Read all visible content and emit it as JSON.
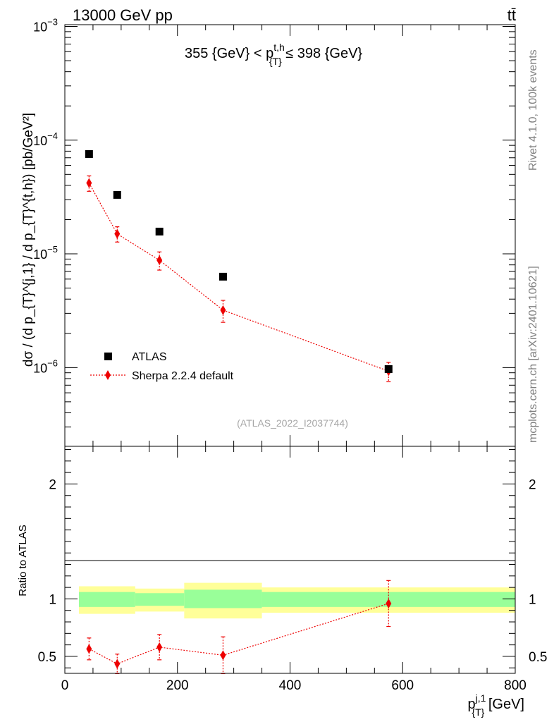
{
  "header": {
    "energy_label": "13000 GeV pp",
    "process_label": "tt̄"
  },
  "side_labels": {
    "rivet": "Rivet 4.1.0,  100k events",
    "source": "mcplots.cern.ch [arXiv:2401.10621]"
  },
  "colors": {
    "data": "#000000",
    "mc": "#ee0000",
    "band_inner": "#99ff99",
    "band_outer": "#ffff99"
  },
  "chart_data": [
    {
      "type": "scatter",
      "panel": "main",
      "title": "355 {GeV} < p_{T}^{t,h} ≤ 398 {GeV}",
      "title_parts": {
        "pre": "355 {GeV} < p",
        "sup": "t,h",
        "sub": "{T}",
        "post": " ≤ 398 {GeV}"
      },
      "ylabel": "dσ / (d p_{T}^{j,1} / d p_{T}^{t,h}) [pb/GeV²]",
      "yscale": "log",
      "ylim": [
        2e-07,
        0.0014
      ],
      "xlim": [
        0,
        800
      ],
      "y_tick_labels": [
        "10^-6",
        "10^-5",
        "10^-4",
        "10^-3"
      ],
      "watermark": "(ATLAS_2022_I2037744)",
      "legend": {
        "placement": "bottom-left",
        "entries": [
          "ATLAS",
          "Sherpa 2.2.4 default"
        ]
      },
      "series": [
        {
          "name": "ATLAS",
          "marker": "square",
          "x": [
            43,
            93,
            168,
            281,
            575
          ],
          "y": [
            7.55e-05,
            3.3e-05,
            1.57e-05,
            6.3e-06,
            9.7e-07
          ]
        },
        {
          "name": "Sherpa 2.2.4 default",
          "marker": "diamond",
          "line": "dotted",
          "x": [
            43,
            93,
            168,
            281,
            575
          ],
          "y": [
            4.2e-05,
            1.5e-05,
            8.8e-06,
            3.2e-06,
            9.3e-07
          ],
          "y_err_low": [
            6.5e-06,
            2.3e-06,
            1.6e-06,
            7e-07,
            1.8e-07
          ],
          "y_err_high": [
            6.5e-06,
            2.3e-06,
            1.6e-06,
            7e-07,
            1.8e-07
          ]
        }
      ]
    },
    {
      "type": "scatter",
      "panel": "ratio",
      "ylabel": "Ratio to ATLAS",
      "xlabel": "p_{T}^{j,1} [GeV]",
      "xlabel_parts": {
        "pre": "p",
        "sup": "j,1",
        "sub": "{T}",
        "post": " [GeV]"
      },
      "ylim": [
        0.35,
        2.35
      ],
      "xlim": [
        0,
        800
      ],
      "x_ticks": [
        0,
        200,
        400,
        600,
        800
      ],
      "y_ticks": [
        0.5,
        1,
        2
      ],
      "bands": [
        {
          "x_low": 25,
          "x_high": 125,
          "inner": [
            0.93,
            1.06
          ],
          "outer": [
            0.87,
            1.11
          ]
        },
        {
          "x_low": 125,
          "x_high": 212,
          "inner": [
            0.94,
            1.05
          ],
          "outer": [
            0.89,
            1.09
          ]
        },
        {
          "x_low": 212,
          "x_high": 350,
          "inner": [
            0.92,
            1.08
          ],
          "outer": [
            0.83,
            1.14
          ]
        },
        {
          "x_low": 350,
          "x_high": 800,
          "inner": [
            0.93,
            1.06
          ],
          "outer": [
            0.88,
            1.1
          ]
        }
      ],
      "series": [
        {
          "name": "Sherpa 2.2.4 default",
          "x": [
            43,
            93,
            168,
            281,
            575
          ],
          "y": [
            0.565,
            0.435,
            0.58,
            0.51,
            0.96
          ],
          "y_err_low": [
            0.095,
            0.085,
            0.11,
            0.16,
            0.2
          ],
          "y_err_high": [
            0.095,
            0.085,
            0.11,
            0.16,
            0.2
          ]
        }
      ]
    }
  ]
}
